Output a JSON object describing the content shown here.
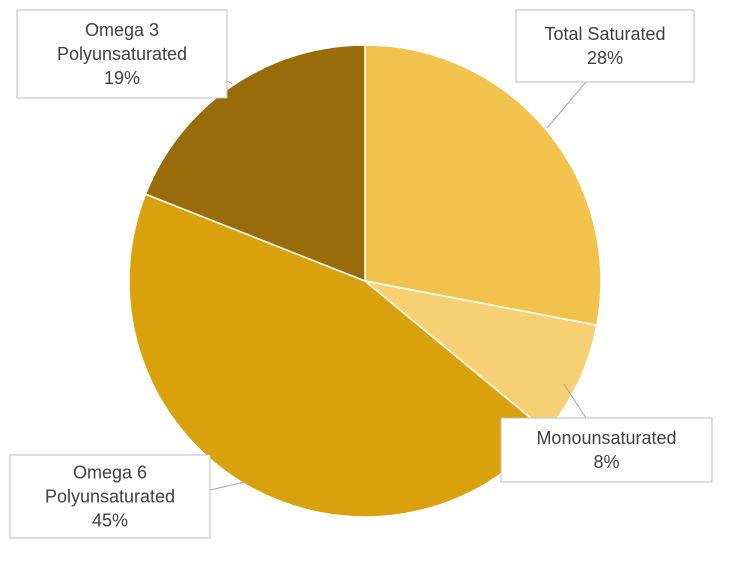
{
  "chart_data": {
    "type": "pie",
    "start_angle_deg": 0,
    "direction": "clockwise",
    "slices": [
      {
        "label_lines": [
          "Total Saturated"
        ],
        "value": 28,
        "value_label": "28%",
        "color": "#f2c34c"
      },
      {
        "label_lines": [
          "Monounsaturated"
        ],
        "value": 8,
        "value_label": "8%",
        "color": "#f6d073"
      },
      {
        "label_lines": [
          "Omega 6",
          "Polyunsaturated"
        ],
        "value": 45,
        "value_label": "45%",
        "color": "#d9a20d"
      },
      {
        "label_lines": [
          "Omega 3",
          "Polyunsaturated"
        ],
        "value": 19,
        "value_label": "19%",
        "color": "#986d09"
      }
    ],
    "legend": "none",
    "data_labels": "callouts"
  }
}
